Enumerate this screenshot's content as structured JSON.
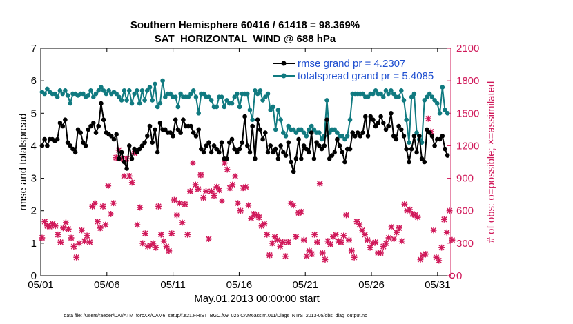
{
  "colors": {
    "rmse": "#000000",
    "totalspread": "#107a80",
    "obs": "#d0195a",
    "legend_text": "#1f4fd0",
    "axis": "#000000"
  },
  "footnote": "data file: /Users/raeder/DAI/ATM_forcXX/CAM6_setup/f.e21.FHIST_BGC.f09_025.CAM6assim.011/Diags_NTrS_2013-05/obs_diag_output.nc",
  "chart_data": {
    "type": "line",
    "title": [
      "Southern Hemisphere 60416 / 61418 = 98.369%",
      "SAT_HORIZONTAL_WIND @ 688 hPa"
    ],
    "xlabel": "May.01,2013 00:00:00 start",
    "ylabel": "rmse and totalspread",
    "y2label": "# of obs: o=possible; ×=assimilated",
    "xlim": [
      1,
      32
    ],
    "ylim": [
      0,
      7
    ],
    "y2lim": [
      0,
      2100
    ],
    "xticks": [
      1,
      6,
      11,
      16,
      21,
      26,
      31
    ],
    "xticklabels": [
      "05/01",
      "05/06",
      "05/11",
      "05/16",
      "05/21",
      "05/26",
      "05/31"
    ],
    "yticks": [
      0,
      1,
      2,
      3,
      4,
      5,
      6,
      7
    ],
    "yticklabels": [
      "0",
      "1",
      "2",
      "3",
      "4",
      "5",
      "6",
      "7"
    ],
    "y2ticks": [
      0,
      300,
      600,
      900,
      1200,
      1500,
      1800,
      2100
    ],
    "y2ticklabels": [
      "0",
      "300",
      "600",
      "900",
      "1200",
      "1500",
      "1800",
      "2100"
    ],
    "legend": [
      "rmse grand pr = 4.2307",
      "totalspread grand pr = 5.4085"
    ],
    "series": [
      {
        "name": "rmse",
        "values": [
          4.0,
          4.2,
          4.0,
          4.2,
          4.2,
          4.15,
          4.2,
          4.7,
          4.6,
          4.8,
          4.1,
          4.0,
          3.9,
          3.8,
          4.5,
          4.4,
          4.1,
          4.0,
          4.5,
          4.6,
          4.7,
          4.4,
          4.6,
          5.3,
          4.8,
          4.4,
          4.35,
          4.3,
          4.2,
          4.35,
          3.6,
          3.8,
          3.5,
          3.3,
          4.0,
          3.6,
          3.9,
          3.8,
          3.9,
          4.0,
          4.1,
          4.3,
          4.6,
          4.1,
          4.5,
          3.8,
          4.7,
          4.5,
          4.5,
          4.4,
          4.4,
          4.3,
          4.8,
          4.5,
          4.4,
          4.8,
          4.6,
          4.6,
          4.6,
          4.4,
          4.3,
          4.5,
          3.9,
          3.8,
          4.0,
          4.1,
          3.8,
          4.0,
          3.9,
          3.8,
          4.1,
          3.6,
          3.6,
          4.1,
          4.2,
          3.9,
          3.8,
          3.9,
          4.1,
          4.9,
          4.0,
          3.8,
          4.6,
          3.6,
          4.8,
          4.5,
          4.2,
          4.4,
          3.8,
          4.0,
          3.8,
          3.9,
          3.6,
          4.0,
          3.8,
          3.7,
          4.1,
          3.5,
          3.2,
          3.6,
          4.2,
          3.6,
          4.0,
          3.9,
          3.8,
          4.4,
          3.6,
          4.1,
          4.0,
          3.9,
          4.0,
          4.8,
          3.6,
          3.7,
          3.8,
          4.2,
          4.0,
          3.8,
          3.5,
          3.9,
          3.9,
          4.4,
          4.3,
          4.4,
          4.3,
          4.4,
          4.9,
          4.3,
          4.9,
          4.8,
          4.6,
          4.7,
          4.9,
          4.7,
          4.5,
          4.6,
          5.0,
          4.3,
          4.2,
          4.6,
          4.5,
          4.3,
          3.9,
          3.5,
          3.9,
          4.3,
          3.8,
          4.3,
          3.6,
          3.5,
          4.5,
          4.4,
          4.3,
          4.0,
          4.2,
          4.2,
          4.3,
          3.9,
          3.7
        ]
      },
      {
        "name": "totalspread",
        "values": [
          5.65,
          5.6,
          5.75,
          5.65,
          5.6,
          5.6,
          5.5,
          5.7,
          5.6,
          5.7,
          5.55,
          5.3,
          5.6,
          5.6,
          5.55,
          5.6,
          5.6,
          5.5,
          5.55,
          5.7,
          5.5,
          5.6,
          5.7,
          5.8,
          5.7,
          5.6,
          5.7,
          5.6,
          5.65,
          5.6,
          5.5,
          5.4,
          5.7,
          5.4,
          5.7,
          5.3,
          5.6,
          5.7,
          5.3,
          5.7,
          5.4,
          5.7,
          5.8,
          5.4,
          5.9,
          5.2,
          5.3,
          6.0,
          5.5,
          5.6,
          5.6,
          5.5,
          5.5,
          5.2,
          5.6,
          5.5,
          5.5,
          5.5,
          5.6,
          5.7,
          5.5,
          5.0,
          5.6,
          5.6,
          5.5,
          5.5,
          5.4,
          5.2,
          5.2,
          5.5,
          5.5,
          5.2,
          5.4,
          5.3,
          5.3,
          5.5,
          5.6,
          5.2,
          5.6,
          5.6,
          5.6,
          5.1,
          4.8,
          5.7,
          5.6,
          5.7,
          5.4,
          5.5,
          5.6,
          5.1,
          5.2,
          4.5,
          5.1,
          4.8,
          4.4,
          4.3,
          4.6,
          4.5,
          4.5,
          4.4,
          4.5,
          4.5,
          4.4,
          4.3,
          4.5,
          4.6,
          4.5,
          4.4,
          4.4,
          4.2,
          4.3,
          5.4,
          4.4,
          4.5,
          4.5,
          4.4,
          4.3,
          4.3,
          4.2,
          4.3,
          4.8,
          5.6,
          5.6,
          5.6,
          5.6,
          5.6,
          5.5,
          5.5,
          5.6,
          5.6,
          5.7,
          5.6,
          5.6,
          5.5,
          5.7,
          5.6,
          5.7,
          5.6,
          5.5,
          5.5,
          5.7,
          5.4,
          4.8,
          4.1,
          5.5,
          5.6,
          4.4,
          4.2,
          4.1,
          5.4,
          5.5,
          5.6,
          5.5,
          5.4,
          5.3,
          5.0,
          5.8,
          5.1,
          5.0
        ]
      }
    ],
    "obs_assimilated": [
      [
        1.1,
        350
      ],
      [
        1.3,
        500
      ],
      [
        1.5,
        460
      ],
      [
        1.7,
        450
      ],
      [
        1.9,
        480
      ],
      [
        2.1,
        460
      ],
      [
        2.3,
        380
      ],
      [
        2.5,
        310
      ],
      [
        2.7,
        440
      ],
      [
        2.9,
        490
      ],
      [
        3.1,
        430
      ],
      [
        3.3,
        350
      ],
      [
        3.5,
        270
      ],
      [
        3.7,
        170
      ],
      [
        3.9,
        300
      ],
      [
        4.1,
        420
      ],
      [
        4.3,
        320
      ],
      [
        4.5,
        370
      ],
      [
        4.7,
        310
      ],
      [
        4.9,
        640
      ],
      [
        5.1,
        670
      ],
      [
        5.3,
        500
      ],
      [
        5.5,
        440
      ],
      [
        5.7,
        640
      ],
      [
        5.9,
        470
      ],
      [
        6.1,
        830
      ],
      [
        6.3,
        570
      ],
      [
        6.5,
        670
      ],
      [
        6.7,
        1090
      ],
      [
        6.9,
        1160
      ],
      [
        7.1,
        1080
      ],
      [
        7.3,
        920
      ],
      [
        7.5,
        1080
      ],
      [
        7.7,
        920
      ],
      [
        7.9,
        860
      ],
      [
        8.1,
        1130
      ],
      [
        8.3,
        470
      ],
      [
        8.5,
        630
      ],
      [
        8.7,
        300
      ],
      [
        8.9,
        390
      ],
      [
        9.1,
        270
      ],
      [
        9.3,
        280
      ],
      [
        9.5,
        300
      ],
      [
        9.7,
        260
      ],
      [
        9.9,
        640
      ],
      [
        10.1,
        380
      ],
      [
        10.3,
        320
      ],
      [
        10.5,
        270
      ],
      [
        10.7,
        230
      ],
      [
        10.9,
        390
      ],
      [
        11.1,
        700
      ],
      [
        11.3,
        560
      ],
      [
        11.5,
        670
      ],
      [
        11.7,
        490
      ],
      [
        11.9,
        660
      ],
      [
        12.1,
        380
      ],
      [
        12.3,
        780
      ],
      [
        12.5,
        1040
      ],
      [
        12.7,
        840
      ],
      [
        12.9,
        800
      ],
      [
        13.1,
        930
      ],
      [
        13.3,
        720
      ],
      [
        13.5,
        780
      ],
      [
        13.7,
        340
      ],
      [
        13.9,
        780
      ],
      [
        14.1,
        740
      ],
      [
        14.3,
        820
      ],
      [
        14.5,
        790
      ],
      [
        14.7,
        690
      ],
      [
        14.9,
        1040
      ],
      [
        15.1,
        980
      ],
      [
        15.3,
        810
      ],
      [
        15.5,
        840
      ],
      [
        15.7,
        920
      ],
      [
        15.9,
        670
      ],
      [
        16.1,
        600
      ],
      [
        16.3,
        810
      ],
      [
        16.5,
        820
      ],
      [
        16.7,
        650
      ],
      [
        16.9,
        530
      ],
      [
        17.1,
        570
      ],
      [
        17.3,
        560
      ],
      [
        17.5,
        540
      ],
      [
        17.7,
        460
      ],
      [
        17.9,
        480
      ],
      [
        18.1,
        380
      ],
      [
        18.3,
        190
      ],
      [
        18.5,
        300
      ],
      [
        18.7,
        360
      ],
      [
        18.9,
        330
      ],
      [
        19.1,
        270
      ],
      [
        19.3,
        310
      ],
      [
        19.5,
        180
      ],
      [
        19.7,
        310
      ],
      [
        19.9,
        670
      ],
      [
        20.1,
        650
      ],
      [
        20.3,
        360
      ],
      [
        20.5,
        580
      ],
      [
        20.7,
        590
      ],
      [
        20.9,
        330
      ],
      [
        21.1,
        180
      ],
      [
        21.3,
        230
      ],
      [
        21.5,
        200
      ],
      [
        21.7,
        380
      ],
      [
        21.9,
        310
      ],
      [
        22.1,
        850
      ],
      [
        22.3,
        210
      ],
      [
        22.5,
        150
      ],
      [
        22.7,
        320
      ],
      [
        22.9,
        290
      ],
      [
        23.1,
        360
      ],
      [
        23.3,
        380
      ],
      [
        23.5,
        320
      ],
      [
        23.7,
        310
      ],
      [
        23.9,
        370
      ],
      [
        24.1,
        560
      ],
      [
        24.3,
        330
      ],
      [
        24.5,
        230
      ],
      [
        24.7,
        170
      ],
      [
        24.9,
        500
      ],
      [
        25.1,
        470
      ],
      [
        25.3,
        420
      ],
      [
        25.5,
        380
      ],
      [
        25.7,
        330
      ],
      [
        25.9,
        260
      ],
      [
        26.1,
        300
      ],
      [
        26.3,
        310
      ],
      [
        26.5,
        210
      ],
      [
        26.7,
        210
      ],
      [
        26.9,
        270
      ],
      [
        27.1,
        300
      ],
      [
        27.3,
        350
      ],
      [
        27.5,
        450
      ],
      [
        27.7,
        340
      ],
      [
        27.9,
        400
      ],
      [
        28.1,
        440
      ],
      [
        28.3,
        320
      ],
      [
        28.5,
        660
      ],
      [
        28.7,
        600
      ],
      [
        28.9,
        610
      ],
      [
        29.1,
        570
      ],
      [
        29.3,
        560
      ],
      [
        29.5,
        540
      ],
      [
        29.7,
        150
      ],
      [
        29.9,
        190
      ],
      [
        30.1,
        200
      ],
      [
        30.3,
        1450
      ],
      [
        30.5,
        1330
      ],
      [
        30.7,
        420
      ],
      [
        30.9,
        170
      ],
      [
        31.1,
        140
      ],
      [
        31.3,
        260
      ],
      [
        31.5,
        520
      ],
      [
        31.7,
        400
      ],
      [
        31.9,
        600
      ],
      [
        32.1,
        330
      ]
    ],
    "obs_possible": [
      [
        32.1,
        0
      ]
    ]
  }
}
